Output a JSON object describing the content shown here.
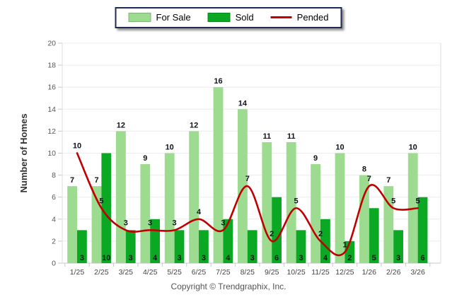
{
  "chart_data": {
    "type": "bar+line",
    "title": "",
    "categories": [
      "1/25",
      "2/25",
      "3/25",
      "4/25",
      "5/25",
      "6/25",
      "7/25",
      "8/25",
      "9/25",
      "10/25",
      "11/25",
      "12/25",
      "1/26",
      "2/26",
      "3/26"
    ],
    "series": [
      {
        "name": "For Sale",
        "type": "bar",
        "color": "#9ddb90",
        "values": [
          7,
          7,
          12,
          9,
          10,
          12,
          16,
          14,
          11,
          11,
          9,
          10,
          8,
          7,
          10
        ]
      },
      {
        "name": "Sold",
        "type": "bar",
        "color": "#0ba823",
        "values": [
          3,
          10,
          3,
          4,
          3,
          3,
          4,
          3,
          6,
          3,
          4,
          2,
          5,
          3,
          6
        ]
      },
      {
        "name": "Pended",
        "type": "line",
        "color": "#c00000",
        "values": [
          10,
          5,
          3,
          3,
          3,
          4,
          3,
          7,
          2,
          5,
          2,
          1,
          7,
          5,
          5
        ]
      }
    ],
    "xlabel": "",
    "ylabel": "Number of Homes",
    "ylim": [
      0,
      20
    ],
    "yticks": [
      0,
      2,
      4,
      6,
      8,
      10,
      12,
      14,
      16,
      18,
      20
    ],
    "grid": true,
    "legend_position": "top-center",
    "gridline_color": "#ececec",
    "axis_color": "#c9c9c9",
    "border_color": "#dcdcdc"
  },
  "footer": {
    "copyright": "Copyright © Trendgraphix, Inc."
  }
}
